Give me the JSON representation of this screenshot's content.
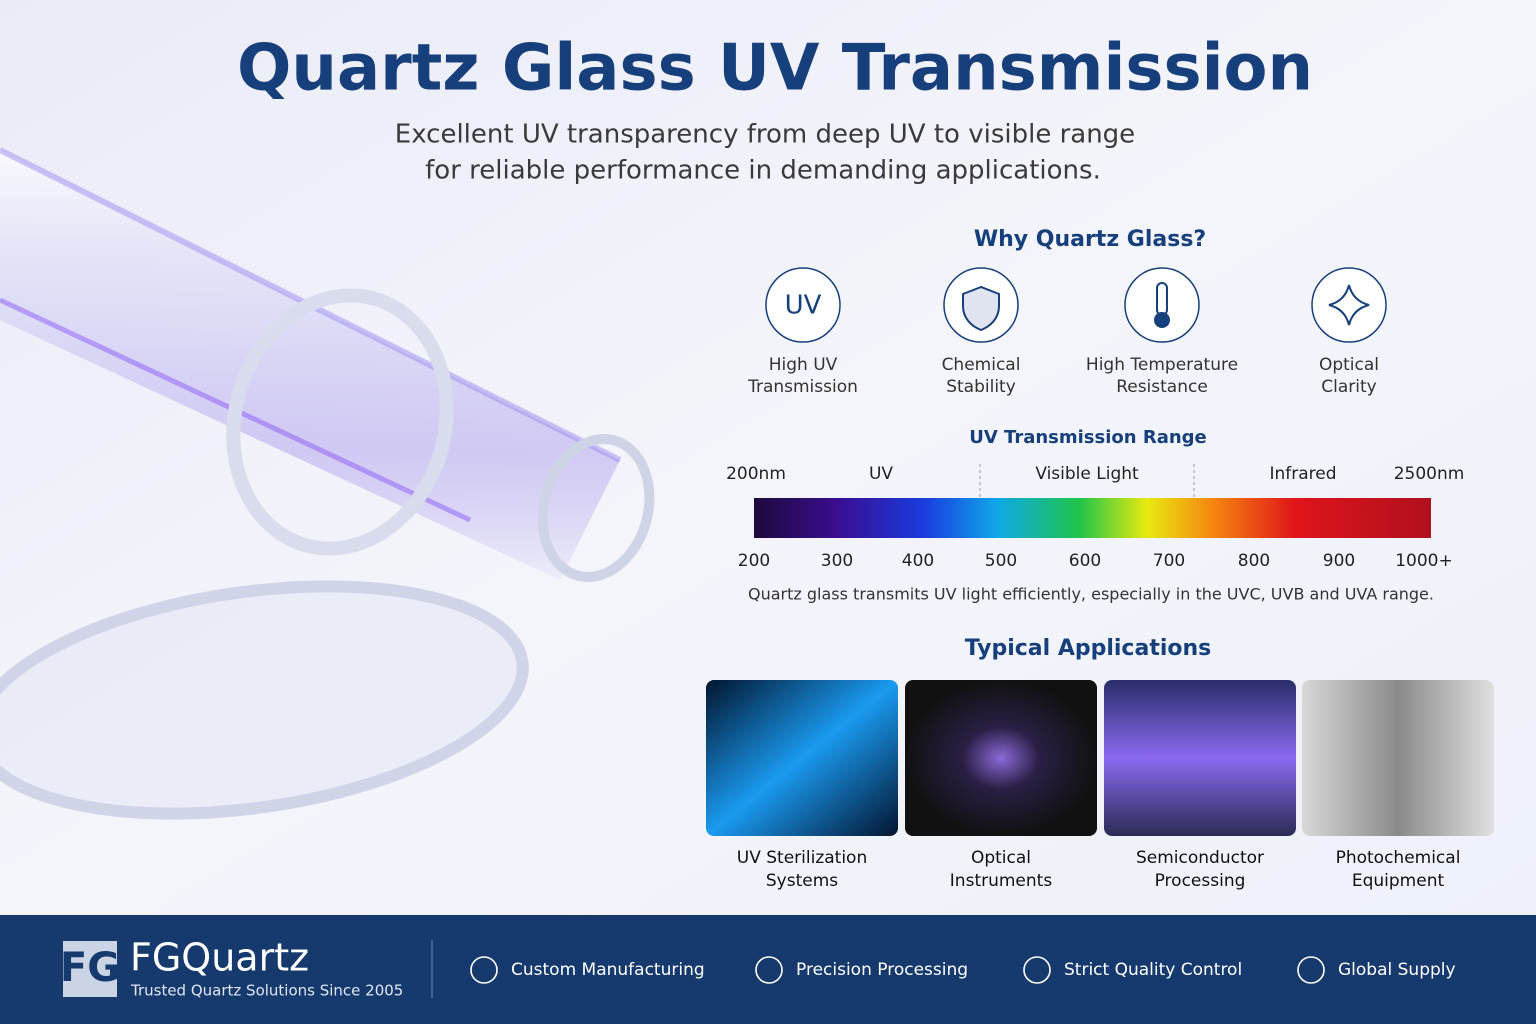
{
  "header": {
    "title": "Quartz Glass UV Transmission",
    "subtitle": [
      "Excellent UV transparency from deep UV to visible range",
      "for reliable performance in demanding applications."
    ]
  },
  "why": {
    "title": "Why Quartz Glass?",
    "features": [
      {
        "icon": "UV",
        "label": [
          "High UV",
          "Transmission"
        ]
      },
      {
        "label": [
          "Chemical",
          "Stability"
        ]
      },
      {
        "label": [
          "High Temperature",
          "Resistance"
        ]
      },
      {
        "label": [
          "Optical",
          "Clarity"
        ]
      }
    ]
  },
  "range": {
    "title": "UV Transmission Range",
    "bands": [
      "200nm",
      "UV",
      "Visible Light",
      "Infrared",
      "2500nm"
    ],
    "ticks": [
      "200",
      "300",
      "400",
      "500",
      "600",
      "700",
      "800",
      "900",
      "1000+"
    ],
    "note": "Quartz glass transmits UV light efficiently, especially in the UVC, UVB and UVA range."
  },
  "applications": {
    "title": "Typical Applications",
    "items": [
      [
        "UV Sterilization",
        "Systems"
      ],
      [
        "Optical",
        "Instruments"
      ],
      [
        "Semiconductor",
        "Processing"
      ],
      [
        "Photochemical",
        "Equipment"
      ]
    ]
  },
  "footer": {
    "logo_mark": "FG",
    "brand": "FGQuartz",
    "tagline": "Trusted Quartz Solutions Since 2005",
    "items": [
      "Custom Manufacturing",
      "Precision Processing",
      "Strict Quality Control",
      "Global Supply"
    ]
  }
}
